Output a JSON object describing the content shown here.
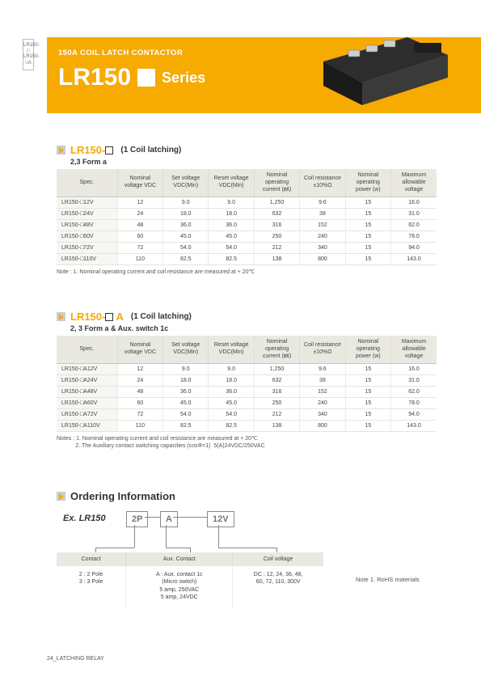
{
  "side_tab": {
    "line1": "LR150-□",
    "line2": "LR150-□A"
  },
  "banner": {
    "subtitle": "150A COIL LATCH  CONTACTOR",
    "model": "LR150",
    "series_word": "Series"
  },
  "section1": {
    "title_model": "LR150-",
    "title_paren": "(1 Coil latching)",
    "subtitle": "2,3 Form a",
    "columns": [
      "Spec.",
      "Nominal\nvoltage VDC",
      "Set voltage\nVDC(Min)",
      "Reset voltage\nVDC(Min)",
      "Nominal\noperating\ncurrent (㎃)",
      "Coil resistance\n±10%Ω",
      "Nominal\noperating\npower (w)",
      "Maximum\nallowable\nvoltage"
    ],
    "rows": [
      [
        "LR150-□12V",
        "12",
        "9.0",
        "9.0",
        "1,250",
        "9.6",
        "15",
        "16.0"
      ],
      [
        "LR150-□24V",
        "24",
        "18.0",
        "18.0",
        "632",
        "38",
        "15",
        "31.0"
      ],
      [
        "LR150-□48V",
        "48",
        "36.0",
        "36.0",
        "316",
        "152",
        "15",
        "62.0"
      ],
      [
        "LR150-□60V",
        "60",
        "45.0",
        "45.0",
        "250",
        "240",
        "15",
        "78.0"
      ],
      [
        "LR150-□72V",
        "72",
        "54.0",
        "54.0",
        "212",
        "340",
        "15",
        "94.0"
      ],
      [
        "LR150-□110V",
        "110",
        "82.5",
        "82.5",
        "138",
        "800",
        "15",
        "143.0"
      ]
    ],
    "note": "Note : 1. Nominal operating current and coil resistance are measured at + 20℃"
  },
  "section2": {
    "title_model": "LR150-",
    "title_suffix": " A",
    "title_paren": "(1 Coil latching)",
    "subtitle": "2, 3 Form a & Aux. switch 1c",
    "columns": [
      "Spec.",
      "Nominal\nvoltage VDC",
      "Set voltage\nVDC(Min)",
      "Reset voltage\nVDC(Min)",
      "Nominal\noperating\ncurrent (㎃)",
      "Coil resistance\n±10%Ω",
      "Nominal\noperating\npower (w)",
      "Maximum\nallowable\nvoltage"
    ],
    "rows": [
      [
        "LR150-□A12V",
        "12",
        "9.0",
        "9.0",
        "1,250",
        "9.6",
        "15",
        "16.0"
      ],
      [
        "LR150-□A24V",
        "24",
        "18.0",
        "18.0",
        "632",
        "38",
        "15",
        "31.0"
      ],
      [
        "LR150-□A48V",
        "48",
        "36.0",
        "36.0",
        "316",
        "152",
        "15",
        "62.0"
      ],
      [
        "LR150-□A60V",
        "60",
        "45.0",
        "45.0",
        "250",
        "240",
        "15",
        "78.0"
      ],
      [
        "LR150-□A72V",
        "72",
        "54.0",
        "54.0",
        "212",
        "340",
        "15",
        "94.0"
      ],
      [
        "LR150-□A110V",
        "110",
        "82.5",
        "82.5",
        "138",
        "800",
        "15",
        "143.0"
      ]
    ],
    "note": "Notes : 1. Nominal operating current and coil resistance are measured at + 20℃\n            2. The Auxiliary contact switching capacities (cosΦ=1)  5(A)24VDC/250VAC"
  },
  "ordering": {
    "title": "Ordering Information",
    "ex_label": "Ex.  LR150",
    "box1": "2P",
    "box2": "A",
    "box3": "12V",
    "columns": [
      "Contact",
      "Aux. Contact",
      "Coil voltage"
    ],
    "cells": [
      "2 : 2 Pole\n3 : 3 Pole",
      "A : Aux. contact 1c\n(Micro switch)\n5 amp, 250VAC\n5 amp, 24VDC",
      "DC : 12, 24, 36, 48,\n60, 72, 110, 300V"
    ],
    "side_note": "Note 1. RoHS materials"
  },
  "footer": "24_LATCHING RELAY"
}
